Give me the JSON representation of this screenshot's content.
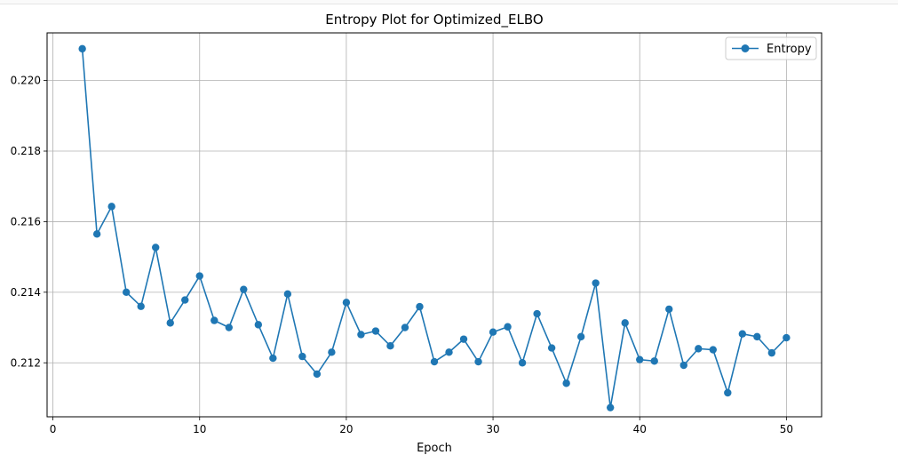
{
  "colors": {
    "series": "#1f77b4",
    "grid": "#b0b0b0",
    "axes": "#000000",
    "background": "#ffffff"
  },
  "chart_data": {
    "type": "line",
    "title": "Entropy Plot for Optimized_ELBO",
    "xlabel": "Epoch",
    "ylabel": "",
    "xlim": [
      -0.4,
      52.4
    ],
    "ylim": [
      0.21047,
      0.22135
    ],
    "xticks": [
      0,
      10,
      20,
      30,
      40,
      50
    ],
    "xtick_labels": [
      "0",
      "10",
      "20",
      "30",
      "40",
      "50"
    ],
    "yticks": [
      0.212,
      0.214,
      0.216,
      0.218,
      0.22
    ],
    "ytick_labels": [
      "0.212",
      "0.214",
      "0.216",
      "0.218",
      "0.220"
    ],
    "grid": true,
    "legend": "top-right",
    "marker": "circle",
    "series": [
      {
        "name": "Entropy",
        "x": [
          2,
          3,
          4,
          5,
          6,
          7,
          8,
          9,
          10,
          11,
          12,
          13,
          14,
          15,
          16,
          17,
          18,
          19,
          20,
          21,
          22,
          23,
          24,
          25,
          26,
          27,
          28,
          29,
          30,
          31,
          32,
          33,
          34,
          35,
          36,
          37,
          38,
          39,
          40,
          41,
          42,
          43,
          44,
          45,
          46,
          47,
          48,
          49,
          50
        ],
        "y": [
          0.2209,
          0.21565,
          0.21643,
          0.214,
          0.2136,
          0.21527,
          0.21313,
          0.21378,
          0.21446,
          0.2132,
          0.213,
          0.21408,
          0.21308,
          0.21213,
          0.21395,
          0.21218,
          0.21168,
          0.2123,
          0.21371,
          0.2128,
          0.2129,
          0.21248,
          0.213,
          0.21359,
          0.21203,
          0.2123,
          0.21267,
          0.21203,
          0.21287,
          0.21302,
          0.212,
          0.21339,
          0.21242,
          0.21142,
          0.21274,
          0.21426,
          0.21073,
          0.21313,
          0.21209,
          0.21205,
          0.21352,
          0.21193,
          0.2124,
          0.21237,
          0.21115,
          0.21282,
          0.21274,
          0.21228,
          0.21271
        ]
      }
    ]
  }
}
